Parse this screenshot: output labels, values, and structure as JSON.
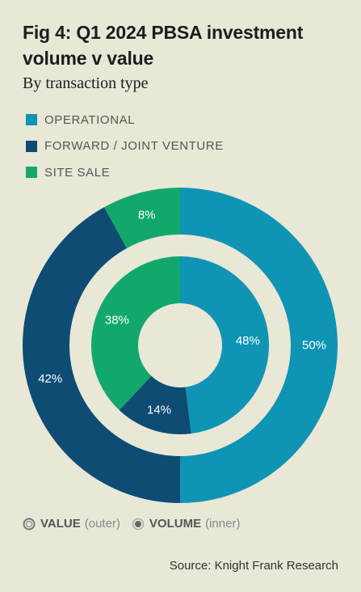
{
  "header": {
    "title": "Fig 4: Q1 2024 PBSA investment volume v value",
    "subtitle": "By transaction type"
  },
  "colors": {
    "operational": "#0f94b4",
    "forward": "#0e4c74",
    "site": "#12a86c",
    "background": "#e9e7d6"
  },
  "chart_data": {
    "type": "pie",
    "categories": [
      "OPERATIONAL",
      "FORWARD / JOINT VENTURE",
      "SITE SALE"
    ],
    "series": [
      {
        "name": "VALUE",
        "ring": "outer",
        "values": [
          50,
          42,
          8
        ],
        "labels": [
          "50%",
          "42%",
          "8%"
        ]
      },
      {
        "name": "VOLUME",
        "ring": "inner",
        "values": [
          48,
          14,
          38
        ],
        "labels": [
          "48%",
          "14%",
          "38%"
        ]
      }
    ],
    "legend": [
      "OPERATIONAL",
      "FORWARD / JOINT VENTURE",
      "SITE SALE"
    ],
    "legend_position": "top-left"
  },
  "footer": {
    "value_label": "VALUE",
    "value_note": "(outer)",
    "volume_label": "VOLUME",
    "volume_note": "(inner)",
    "source": "Source: Knight Frank Research"
  }
}
